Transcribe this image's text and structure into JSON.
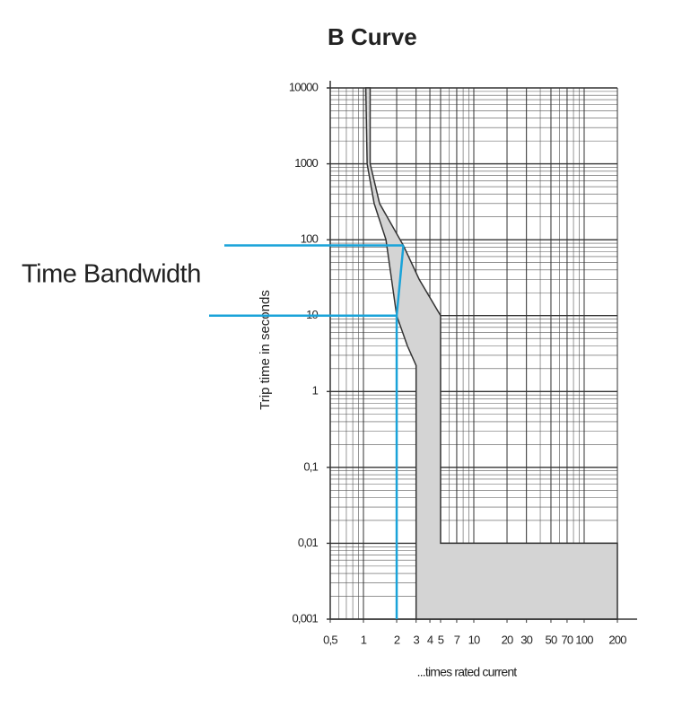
{
  "chart_data": {
    "type": "band",
    "title": "B Curve",
    "y_label": "Trip time in seconds",
    "x_label": "...times rated current",
    "annotation": "Time Bandwidth",
    "log_x": true,
    "log_y": true,
    "grid": true,
    "xlim": [
      0.5,
      200
    ],
    "xticks": [
      {
        "value": 0.5,
        "label": "0,5"
      },
      1,
      2,
      3,
      4,
      5,
      7,
      10,
      20,
      30,
      50,
      70,
      100,
      200
    ],
    "ylim": [
      0.001,
      10000
    ],
    "yticks": [
      {
        "value": 0.001,
        "label": "0,001"
      },
      {
        "value": 0.01,
        "label": "0,01"
      },
      {
        "value": 0.1,
        "label": "0,1"
      },
      1,
      10,
      100,
      1000,
      10000
    ],
    "band_color": "#d4d4d4",
    "series": [
      {
        "x": [
          1.05,
          1.08,
          1.25,
          1.6,
          2,
          2.5,
          3,
          3
        ],
        "values": [
          10000,
          1000,
          300,
          100,
          10,
          4,
          2.2,
          0.001
        ]
      },
      {
        "x": [
          1.15,
          1.15,
          1.4,
          2.3,
          3.2,
          5,
          5,
          200,
          200
        ],
        "values": [
          10000,
          1000,
          300,
          84,
          30,
          10,
          0.01,
          0.01,
          0.001
        ]
      }
    ],
    "bandwidth": {
      "color": "#1aa3d9",
      "x_low": 2,
      "x_high": 2.3,
      "lower": 10,
      "upper": 84
    }
  }
}
